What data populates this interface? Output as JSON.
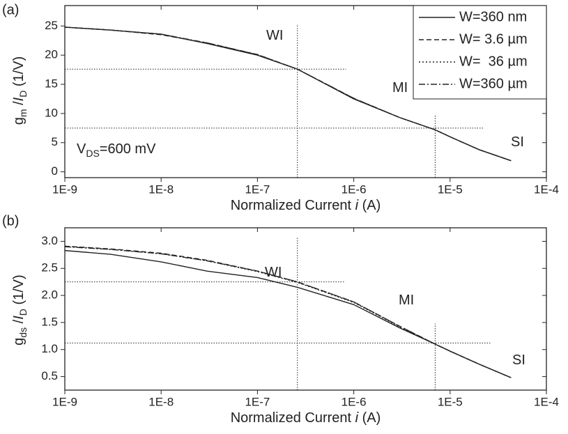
{
  "chart_data": [
    {
      "type": "line",
      "panel_label": "(a)",
      "log_x": true,
      "xlabel": [
        {
          "text": "Normalized Current "
        },
        {
          "text": "i",
          "italic": true
        },
        {
          "text": " (A)"
        }
      ],
      "ylabel": [
        {
          "text": "g"
        },
        {
          "text": "m",
          "sub": true
        },
        {
          "text": " /"
        },
        {
          "text": "I",
          "italic": true
        },
        {
          "text": "D",
          "sub": true
        },
        {
          "text": " (1/V)"
        }
      ],
      "xlim": [
        1e-09,
        0.0001
      ],
      "xticks": [
        {
          "value": 1e-09,
          "label": "1E-9"
        },
        {
          "value": 1e-08,
          "label": "1E-8"
        },
        {
          "value": 1e-07,
          "label": "1E-7"
        },
        {
          "value": 1e-06,
          "label": "1E-6"
        },
        {
          "value": 1e-05,
          "label": "1E-5"
        },
        {
          "value": 0.0001,
          "label": "1E-4"
        }
      ],
      "ylim": [
        -1,
        28.5
      ],
      "yticks": [
        0,
        5,
        10,
        15,
        20,
        25
      ],
      "legend": "top-right",
      "x": [
        1e-09,
        3e-09,
        1e-08,
        3e-08,
        1e-07,
        2.6e-07,
        1e-06,
        3e-06,
        7e-06,
        1e-05,
        2e-05,
        4.3e-05
      ],
      "series": [
        {
          "name": "W=360 nm",
          "color": "#222222",
          "dash": "solid",
          "values": [
            24.8,
            24.3,
            23.6,
            22.0,
            20.0,
            17.6,
            12.5,
            9.3,
            7.2,
            6.0,
            3.8,
            1.9
          ]
        },
        {
          "name": "W= 3.6 µm",
          "color": "#222222",
          "dash": "dashed",
          "values": [
            24.8,
            24.3,
            23.5,
            22.1,
            20.1,
            17.6,
            12.6,
            9.3,
            7.2,
            6.0,
            3.8,
            1.9
          ]
        },
        {
          "name": "W=  36 µm",
          "color": "#222222",
          "dash": "dotted",
          "values": [
            24.8,
            24.3,
            23.6,
            22.0,
            20.0,
            17.6,
            12.5,
            9.3,
            7.2,
            6.0,
            3.8,
            1.9
          ]
        },
        {
          "name": "W=360 µm",
          "color": "#222222",
          "dash": "dashdot",
          "values": [
            24.8,
            24.3,
            23.6,
            22.1,
            20.1,
            17.6,
            12.6,
            9.3,
            7.2,
            6.0,
            3.8,
            1.9
          ]
        }
      ],
      "reference_lines": [
        {
          "x": [
            1e-09,
            8.3e-07
          ],
          "y": [
            17.6,
            17.6
          ]
        },
        {
          "x": [
            2.6e-07,
            2.6e-07
          ],
          "y": [
            -1,
            25.3
          ]
        },
        {
          "x": [
            1e-09,
            2.2e-05
          ],
          "y": [
            7.5,
            7.5
          ]
        },
        {
          "x": [
            7e-06,
            7e-06
          ],
          "y": [
            -1,
            9.8
          ]
        }
      ],
      "annotations": [
        [
          {
            "text": "WI"
          }
        ],
        [
          {
            "text": "MI"
          }
        ],
        [
          {
            "text": "SI"
          }
        ],
        [
          {
            "text": "V"
          },
          {
            "text": "DS",
            "sub": true
          },
          {
            "text": "=600 mV"
          }
        ]
      ]
    },
    {
      "type": "line",
      "panel_label": "(b)",
      "log_x": true,
      "xlabel": [
        {
          "text": "Normalized Current "
        },
        {
          "text": "i",
          "italic": true
        },
        {
          "text": " (A)"
        }
      ],
      "ylabel": [
        {
          "text": "g"
        },
        {
          "text": "ds",
          "sub": true
        },
        {
          "text": " /"
        },
        {
          "text": "I",
          "italic": true
        },
        {
          "text": "D",
          "sub": true
        },
        {
          "text": " (1/V)"
        }
      ],
      "xlim": [
        1e-09,
        0.0001
      ],
      "xticks": [
        {
          "value": 1e-09,
          "label": "1E-9"
        },
        {
          "value": 1e-08,
          "label": "1E-8"
        },
        {
          "value": 1e-07,
          "label": "1E-7"
        },
        {
          "value": 1e-06,
          "label": "1E-6"
        },
        {
          "value": 1e-05,
          "label": "1E-5"
        },
        {
          "value": 0.0001,
          "label": "1E-4"
        }
      ],
      "ylim": [
        0.25,
        3.25
      ],
      "yticks": [
        0.5,
        {
          "value": 1,
          "label": "1.0"
        },
        1.5,
        {
          "value": 2,
          "label": "2.0"
        },
        2.5,
        {
          "value": 3,
          "label": "3.0"
        }
      ],
      "x": [
        1e-09,
        3e-09,
        1e-08,
        3e-08,
        1e-07,
        2.6e-07,
        1e-06,
        3e-06,
        7e-06,
        1e-05,
        2e-05,
        4.3e-05
      ],
      "series": [
        {
          "color": "#222222",
          "dash": "solid",
          "values": [
            2.83,
            2.76,
            2.62,
            2.45,
            2.33,
            2.15,
            1.83,
            1.4,
            1.1,
            0.97,
            0.73,
            0.48
          ]
        },
        {
          "color": "#222222",
          "dash": "dashed",
          "values": [
            2.91,
            2.86,
            2.78,
            2.65,
            2.45,
            2.25,
            1.88,
            1.43,
            1.1,
            0.97,
            0.73,
            0.48
          ]
        },
        {
          "color": "#222222",
          "dash": "dotted",
          "values": [
            2.91,
            2.85,
            2.77,
            2.64,
            2.44,
            2.24,
            1.87,
            1.42,
            1.1,
            0.97,
            0.73,
            0.48
          ]
        },
        {
          "color": "#222222",
          "dash": "dashdot",
          "values": [
            2.9,
            2.85,
            2.77,
            2.64,
            2.45,
            2.25,
            1.88,
            1.43,
            1.1,
            0.97,
            0.73,
            0.48
          ]
        }
      ],
      "reference_lines": [
        {
          "x": [
            1e-09,
            8e-07
          ],
          "y": [
            2.25,
            2.25
          ]
        },
        {
          "x": [
            2.6e-07,
            2.6e-07
          ],
          "y": [
            0.25,
            3.08
          ]
        },
        {
          "x": [
            1e-09,
            2.7e-05
          ],
          "y": [
            1.12,
            1.12
          ]
        },
        {
          "x": [
            7e-06,
            7e-06
          ],
          "y": [
            0.25,
            1.48
          ]
        }
      ],
      "annotations": [
        [
          {
            "text": "WI"
          }
        ],
        [
          {
            "text": "MI"
          }
        ],
        [
          {
            "text": "SI"
          }
        ]
      ]
    }
  ]
}
